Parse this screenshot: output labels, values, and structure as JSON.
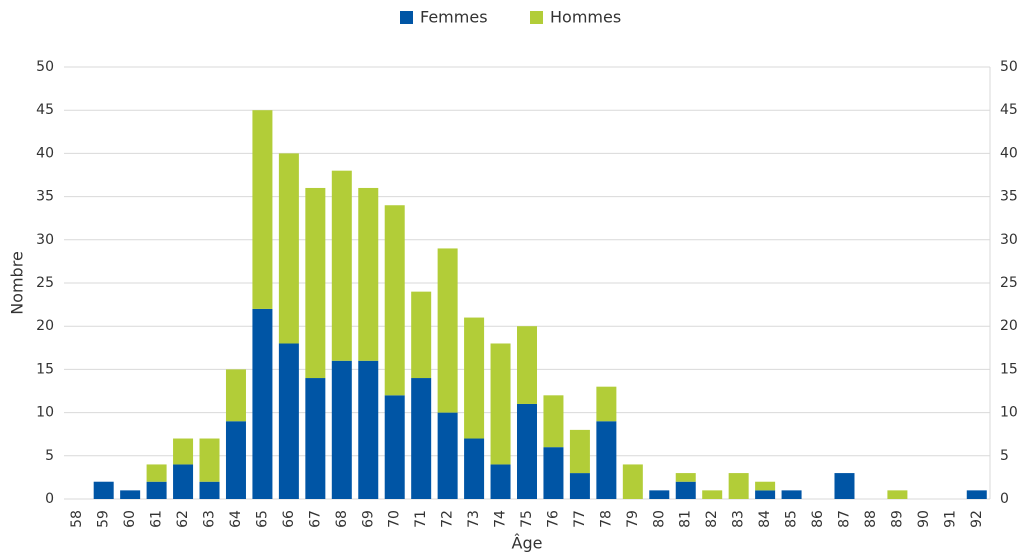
{
  "chart_data": {
    "type": "stacked_bar",
    "x_label": "Âge",
    "y_label": "Nombre",
    "categories": [
      "58",
      "59",
      "60",
      "61",
      "62",
      "63",
      "64",
      "65",
      "66",
      "67",
      "68",
      "69",
      "70",
      "71",
      "72",
      "73",
      "74",
      "75",
      "76",
      "77",
      "78",
      "79",
      "80",
      "81",
      "82",
      "83",
      "84",
      "85",
      "86",
      "87",
      "88",
      "89",
      "90",
      "91",
      "92"
    ],
    "series": [
      {
        "name": "Femmes",
        "color": "#0055a5",
        "values": [
          0,
          2,
          1,
          2,
          4,
          2,
          9,
          22,
          18,
          14,
          16,
          16,
          12,
          14,
          10,
          7,
          4,
          11,
          6,
          3,
          9,
          0,
          1,
          2,
          0,
          0,
          1,
          1,
          0,
          3,
          0,
          0,
          0,
          0,
          1
        ]
      },
      {
        "name": "Hommes",
        "color": "#b2cd38",
        "values": [
          0,
          0,
          0,
          2,
          3,
          5,
          6,
          23,
          22,
          22,
          22,
          20,
          22,
          10,
          19,
          14,
          14,
          9,
          6,
          5,
          4,
          4,
          0,
          1,
          1,
          3,
          1,
          0,
          0,
          0,
          0,
          1,
          0,
          0,
          0
        ]
      }
    ],
    "ylim": [
      0,
      50
    ],
    "yticks": [
      0,
      5,
      10,
      15,
      20,
      25,
      30,
      35,
      40,
      45,
      50
    ],
    "y2lim": [
      0,
      50
    ],
    "y2ticks": [
      0,
      5,
      10,
      15,
      20,
      25,
      30,
      35,
      40,
      45,
      50
    ],
    "grid": true,
    "legend": "top"
  }
}
